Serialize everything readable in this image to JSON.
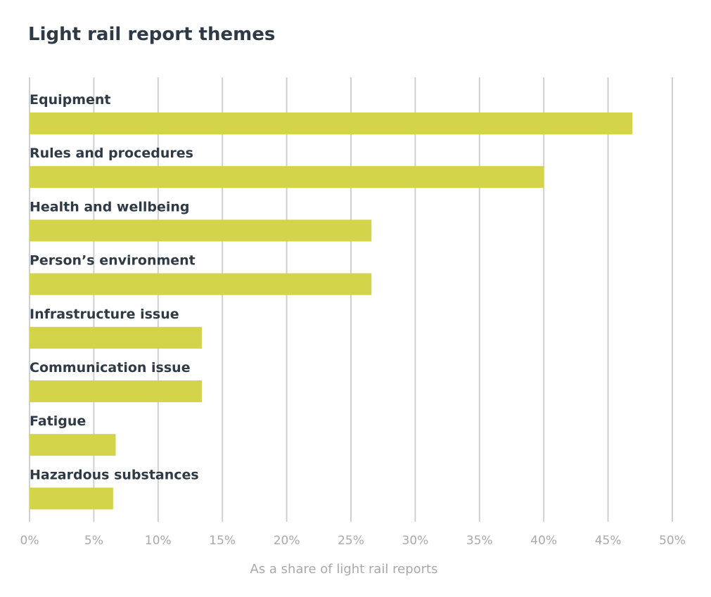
{
  "chart_data": {
    "type": "bar",
    "orientation": "horizontal",
    "title": "Light rail report themes",
    "xlabel": "As a share of light rail reports",
    "ylabel": "",
    "xlim": [
      0,
      50
    ],
    "x_ticks": [
      "0%",
      "5%",
      "10%",
      "15%",
      "20%",
      "25%",
      "30%",
      "35%",
      "40%",
      "45%",
      "50%"
    ],
    "tick_values": [
      0,
      5,
      10,
      15,
      20,
      25,
      30,
      35,
      40,
      45,
      50
    ],
    "grid": true,
    "legend": "none",
    "bar_color": "#d4d44a",
    "categories": [
      "Equipment",
      "Rules and procedures",
      "Health and wellbeing",
      "Person’s environment",
      "Infrastructure issue",
      "Communication issue",
      "Fatigue",
      "Hazardous substances"
    ],
    "values": [
      46.9,
      40.0,
      26.6,
      26.6,
      13.4,
      13.4,
      6.7,
      6.5
    ]
  }
}
